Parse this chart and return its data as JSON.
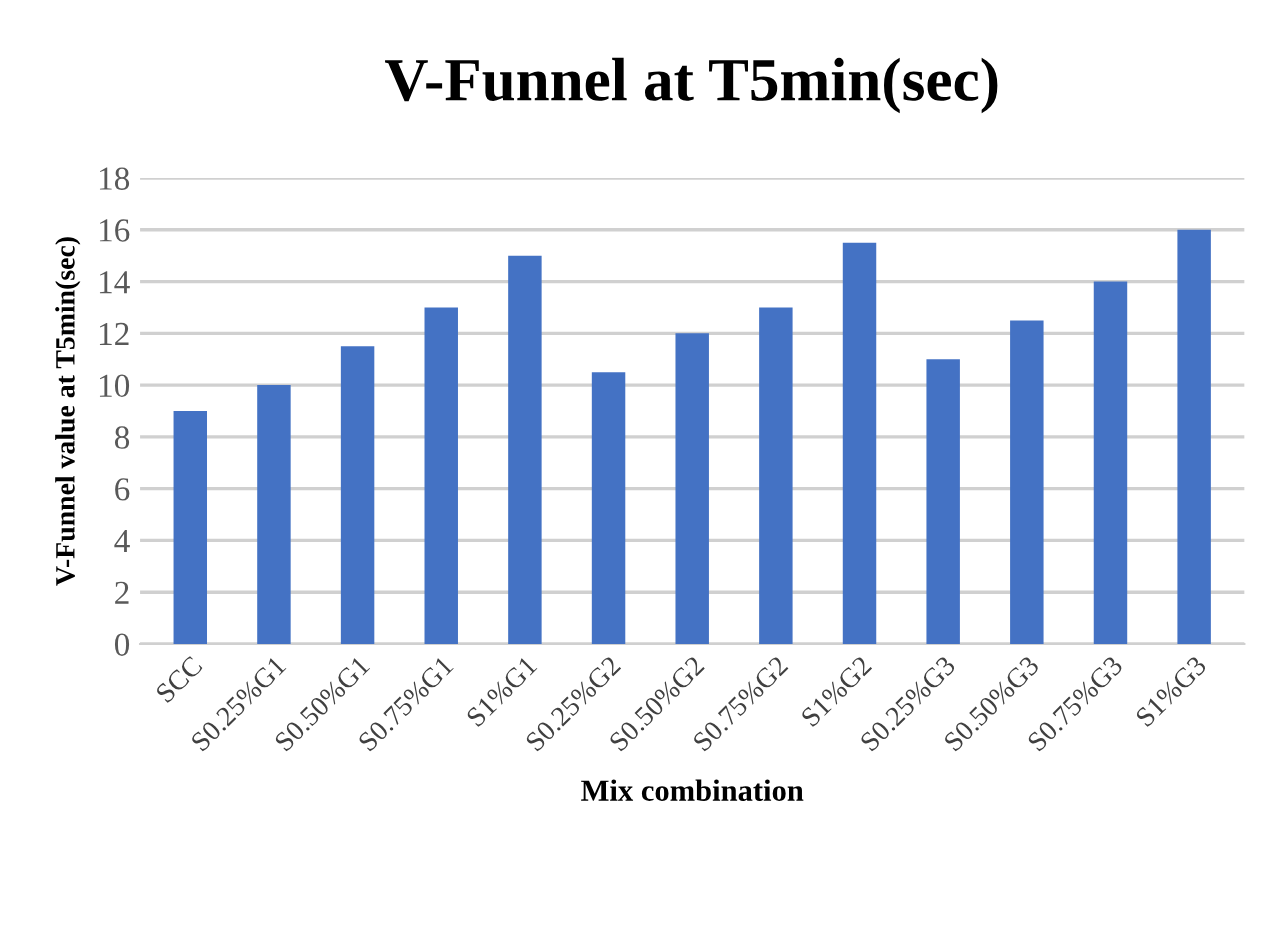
{
  "chart_data": {
    "type": "bar",
    "title": "V-Funnel at T5min(sec)",
    "xlabel": "Mix combination",
    "ylabel": "V-Funnel value at T5min(sec)",
    "categories": [
      "SCC",
      "S0.25%G1",
      "S0.50%G1",
      "S0.75%G1",
      "S1%G1",
      "S0.25%G2",
      "S0.50%G2",
      "S0.75%G2",
      "S1%G2",
      "S0.25%G3",
      "S0.50%G3",
      "S0.75%G3",
      "S1%G3"
    ],
    "values": [
      9,
      10,
      11.5,
      13,
      15,
      10.5,
      12,
      13,
      15.5,
      11,
      12.5,
      14,
      16
    ],
    "color": "#4472c4",
    "ylim": [
      0,
      18
    ],
    "yticks": [
      0,
      2,
      4,
      6,
      8,
      10,
      12,
      14,
      16,
      18
    ],
    "grid": "y",
    "legend": false
  }
}
